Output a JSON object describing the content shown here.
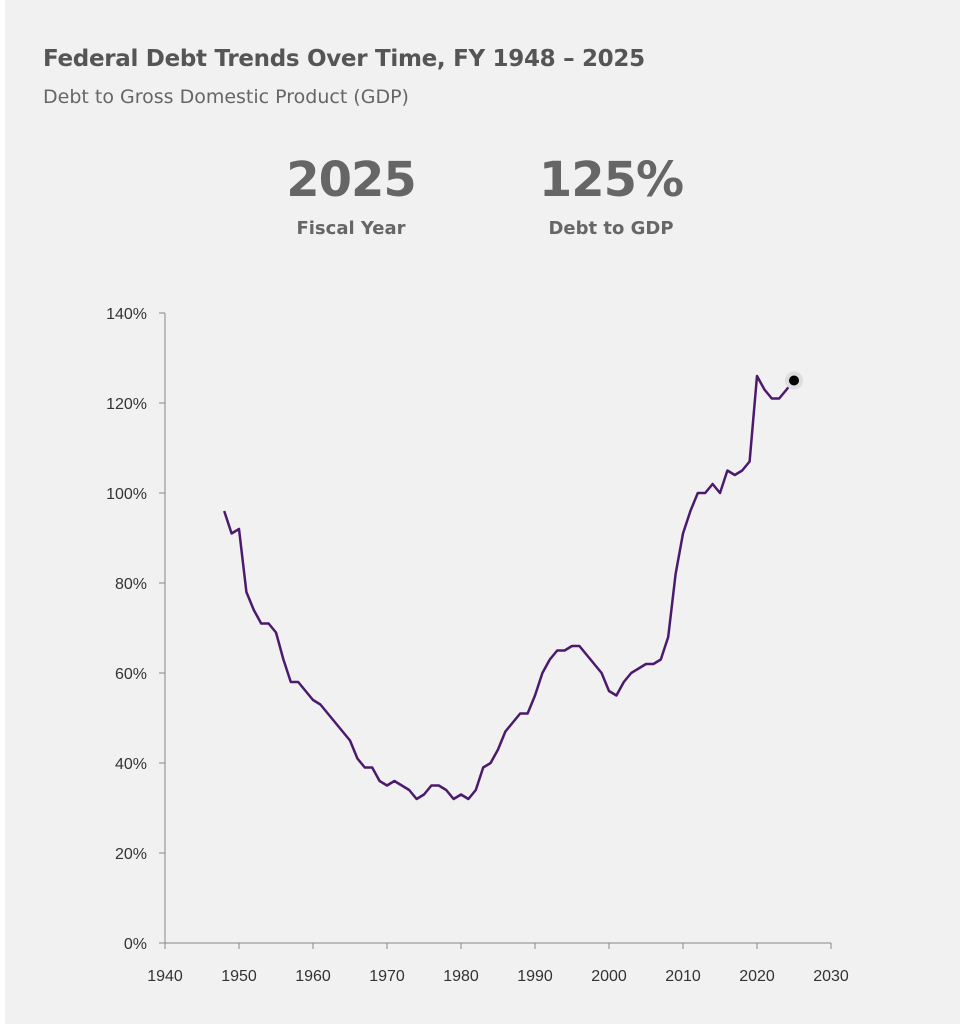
{
  "header": {
    "title": "Federal Debt Trends Over Time, FY 1948 – 2025",
    "subtitle": "Debt to Gross Domestic Product (GDP)"
  },
  "stats": [
    {
      "value": "2025",
      "label": "Fiscal Year"
    },
    {
      "value": "125%",
      "label": "Debt to GDP"
    }
  ],
  "colors": {
    "line": "#4b1a6e",
    "marker": "#000000",
    "axis": "#888888"
  },
  "chart_data": {
    "type": "line",
    "title": "",
    "xlabel": "",
    "ylabel": "",
    "xlim": [
      1940,
      2030
    ],
    "ylim": [
      0,
      140
    ],
    "x_ticks": [
      1940,
      1950,
      1960,
      1970,
      1980,
      1990,
      2000,
      2010,
      2020,
      2030
    ],
    "x_tick_labels": [
      "1940",
      "1950",
      "1960",
      "1970",
      "1980",
      "1990",
      "2000",
      "2010",
      "2020",
      "2030"
    ],
    "y_ticks": [
      0,
      20,
      40,
      60,
      80,
      100,
      120,
      140
    ],
    "y_tick_labels": [
      "0%",
      "20%",
      "40%",
      "60%",
      "80%",
      "100%",
      "120%",
      "140%"
    ],
    "grid": false,
    "highlight": {
      "x": 2025,
      "y": 125
    },
    "series": [
      {
        "name": "Debt to GDP",
        "x": [
          1948,
          1949,
          1950,
          1951,
          1952,
          1953,
          1954,
          1955,
          1956,
          1957,
          1958,
          1959,
          1960,
          1961,
          1962,
          1963,
          1964,
          1965,
          1966,
          1967,
          1968,
          1969,
          1970,
          1971,
          1972,
          1973,
          1974,
          1975,
          1976,
          1977,
          1978,
          1979,
          1980,
          1981,
          1982,
          1983,
          1984,
          1985,
          1986,
          1987,
          1988,
          1989,
          1990,
          1991,
          1992,
          1993,
          1994,
          1995,
          1996,
          1997,
          1998,
          1999,
          2000,
          2001,
          2002,
          2003,
          2004,
          2005,
          2006,
          2007,
          2008,
          2009,
          2010,
          2011,
          2012,
          2013,
          2014,
          2015,
          2016,
          2017,
          2018,
          2019,
          2020,
          2021,
          2022,
          2023,
          2024,
          2025
        ],
        "values": [
          96,
          91,
          92,
          78,
          74,
          71,
          71,
          69,
          63,
          58,
          58,
          56,
          54,
          53,
          51,
          49,
          47,
          45,
          41,
          39,
          39,
          36,
          35,
          36,
          35,
          34,
          32,
          33,
          35,
          35,
          34,
          32,
          33,
          32,
          34,
          39,
          40,
          43,
          47,
          49,
          51,
          51,
          55,
          60,
          63,
          65,
          65,
          66,
          66,
          64,
          62,
          60,
          56,
          55,
          58,
          60,
          61,
          62,
          62,
          63,
          68,
          82,
          91,
          96,
          100,
          100,
          102,
          100,
          105,
          104,
          105,
          107,
          126,
          123,
          121,
          121,
          123,
          125
        ]
      }
    ]
  }
}
